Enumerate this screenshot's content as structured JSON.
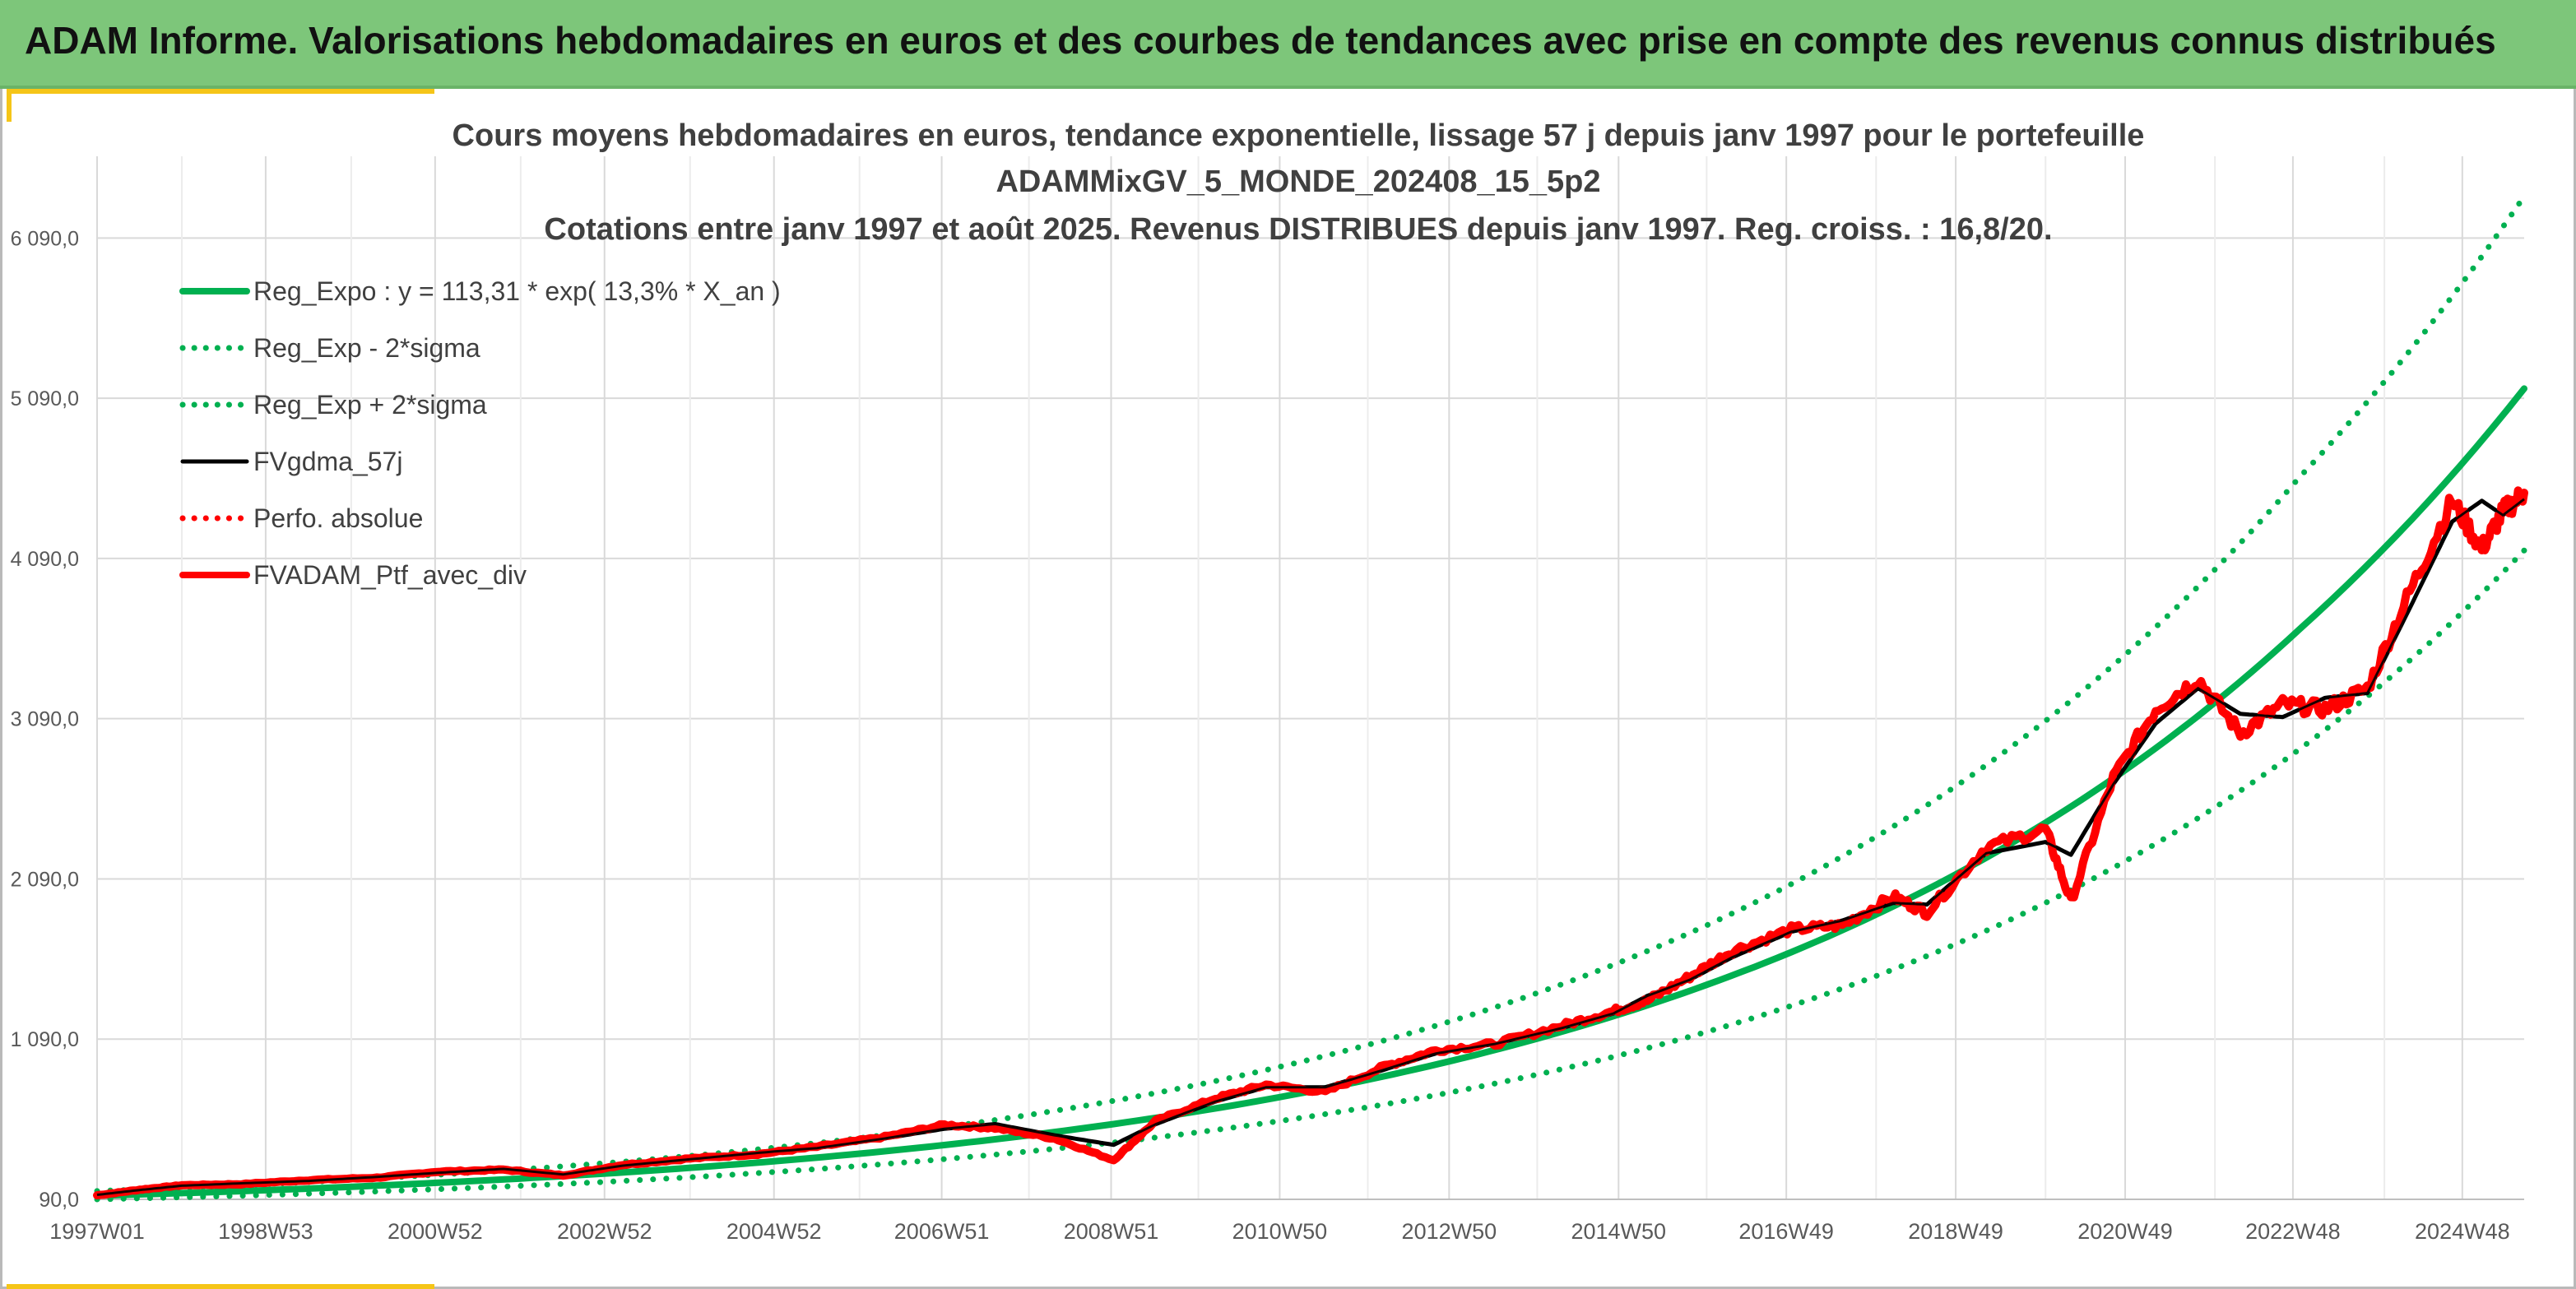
{
  "banner": {
    "title": "ADAM Informe. Valorisations hebdomadaires en euros et des courbes de tendances avec prise en compte des revenus connus distribués"
  },
  "colors": {
    "banner": "#7dc67a",
    "corner_accent": "#f5c518",
    "reg_green": "#00b050",
    "red": "#ff0000",
    "black": "#000000",
    "grid": "#d9d9d9",
    "axis_text": "#595959",
    "title_text": "#404040"
  },
  "chart_data": {
    "type": "line",
    "title_lines": [
      "Cours moyens hebdomadaires en euros, tendance exponentielle, lissage 57 j depuis janv 1997 pour le portefeuille",
      "ADAMMixGV_5_MONDE_202408_15_5p2",
      "Cotations entre janv 1997 et août 2025. Revenus DISTRIBUES depuis janv 1997. Reg. croiss. : 16,8/20."
    ],
    "xlabel": "",
    "ylabel": "",
    "x_range": [
      1997.0,
      2025.65
    ],
    "ylim": [
      90,
      6600
    ],
    "y_ticks": [
      90,
      1090,
      2090,
      3090,
      4090,
      5090,
      6090
    ],
    "y_tick_labels": [
      "90,0",
      "1 090,0",
      "2 090,0",
      "3 090,0",
      "4 090,0",
      "5 090,0",
      "6 090,0"
    ],
    "x_ticks": [
      {
        "x": 1997.0,
        "label": "1997W01"
      },
      {
        "x": 1998.99,
        "label": "1998W53"
      },
      {
        "x": 2000.99,
        "label": "2000W52"
      },
      {
        "x": 2002.99,
        "label": "2002W52"
      },
      {
        "x": 2004.99,
        "label": "2004W52"
      },
      {
        "x": 2006.97,
        "label": "2006W51"
      },
      {
        "x": 2008.97,
        "label": "2008W51"
      },
      {
        "x": 2010.96,
        "label": "2010W50"
      },
      {
        "x": 2012.96,
        "label": "2012W50"
      },
      {
        "x": 2014.96,
        "label": "2014W50"
      },
      {
        "x": 2016.94,
        "label": "2016W49"
      },
      {
        "x": 2018.94,
        "label": "2018W49"
      },
      {
        "x": 2020.94,
        "label": "2020W49"
      },
      {
        "x": 2022.92,
        "label": "2022W48"
      },
      {
        "x": 2024.92,
        "label": "2024W48"
      }
    ],
    "grid": true,
    "legend_position": "top-left",
    "series": [
      {
        "name": "Reg_Expo : y = 113,31 * exp( 13,3% *  X_an )",
        "style": "solid",
        "color": "#00b050",
        "x": [
          1997,
          1999,
          2001,
          2003,
          2005,
          2007,
          2009,
          2011,
          2013,
          2015,
          2017,
          2019,
          2021,
          2023,
          2025.65
        ],
        "y": [
          113,
          147,
          193,
          251,
          328,
          429,
          560,
          732,
          956,
          1250,
          1633,
          2135,
          2791,
          3649,
          5150
        ]
      },
      {
        "name": "Reg_Exp - 2*sigma",
        "style": "dotted",
        "color": "#00b050",
        "x": [
          1997,
          1999,
          2001,
          2003,
          2005,
          2007,
          2009,
          2011,
          2013,
          2015,
          2017,
          2019,
          2021,
          2023,
          2025.65
        ],
        "y": [
          90,
          117,
          153,
          199,
          261,
          341,
          445,
          582,
          760,
          993,
          1298,
          1697,
          2218,
          2900,
          4140
        ]
      },
      {
        "name": "Reg_Exp + 2*sigma",
        "style": "dotted",
        "color": "#00b050",
        "x": [
          1997,
          1999,
          2001,
          2003,
          2005,
          2007,
          2009,
          2011,
          2013,
          2015,
          2017,
          2019,
          2021,
          2023,
          2025.65
        ],
        "y": [
          142,
          185,
          243,
          316,
          413,
          540,
          705,
          922,
          1205,
          1575,
          2058,
          2690,
          3517,
          4598,
          6350
        ]
      },
      {
        "name": "FVgdma_57j",
        "style": "solid",
        "color": "#000000",
        "x": [
          1997,
          1997.5,
          1998,
          1998.7,
          1999.5,
          2000.3,
          2001,
          2001.8,
          2002.5,
          2003.2,
          2004,
          2004.8,
          2005.5,
          2006.3,
          2007,
          2007.6,
          2008.3,
          2009,
          2009.5,
          2010.2,
          2010.8,
          2011.5,
          2012.2,
          2012.8,
          2013.5,
          2014.3,
          2014.9,
          2015.3,
          2015.8,
          2016.3,
          2017,
          2017.6,
          2018.2,
          2018.6,
          2019.3,
          2020.0,
          2020.3,
          2020.8,
          2021.3,
          2021.8,
          2022.3,
          2022.8,
          2023.3,
          2023.8,
          2024.3,
          2024.8,
          2025.15,
          2025.4,
          2025.65
        ],
        "y": [
          118,
          148,
          175,
          190,
          205,
          230,
          255,
          280,
          245,
          300,
          340,
          380,
          410,
          470,
          530,
          560,
          490,
          430,
          560,
          700,
          790,
          790,
          900,
          1000,
          1060,
          1160,
          1250,
          1360,
          1460,
          1600,
          1760,
          1830,
          1940,
          1930,
          2250,
          2320,
          2240,
          2680,
          3060,
          3280,
          3120,
          3100,
          3220,
          3250,
          3780,
          4320,
          4450,
          4360,
          4460
        ]
      },
      {
        "name": "Perfo. absolue",
        "style": "dotted",
        "color": "#ff0000",
        "x": [
          1997,
          1997.5,
          1998,
          1998.7,
          1999.5,
          2000.3,
          2001,
          2001.8,
          2002.5,
          2003.2,
          2004,
          2004.8,
          2005.5,
          2006.3,
          2007,
          2007.6,
          2008.3,
          2009,
          2009.5,
          2010.2,
          2010.8,
          2011.5,
          2012.2,
          2012.8,
          2013.5,
          2014.3,
          2014.9,
          2015.3,
          2015.8,
          2016.3,
          2017,
          2017.6,
          2018.2,
          2018.6,
          2019.3,
          2020.0,
          2020.3,
          2020.8,
          2021.3,
          2021.8,
          2022.3,
          2022.8,
          2023.3,
          2023.8,
          2024.3,
          2024.8,
          2025.15,
          2025.4,
          2025.65
        ],
        "y": [
          115,
          150,
          178,
          185,
          210,
          225,
          262,
          275,
          240,
          305,
          345,
          372,
          418,
          480,
          555,
          535,
          470,
          335,
          580,
          720,
          805,
          760,
          920,
          1020,
          1060,
          1175,
          1265,
          1330,
          1480,
          1640,
          1775,
          1800,
          1980,
          1880,
          2290,
          2400,
          1950,
          2720,
          3150,
          3340,
          3000,
          3180,
          3150,
          3280,
          3880,
          4450,
          4150,
          4380,
          4500
        ]
      },
      {
        "name": "FVADAM_Ptf_avec_div",
        "style": "solid",
        "color": "#ff0000",
        "x": [
          1997,
          1997.5,
          1998,
          1998.7,
          1999.5,
          2000.3,
          2001,
          2001.8,
          2002.5,
          2003.2,
          2004,
          2004.8,
          2005.5,
          2006.3,
          2007,
          2007.6,
          2008.3,
          2009,
          2009.5,
          2010.2,
          2010.8,
          2011.5,
          2012.2,
          2012.8,
          2013.5,
          2014.3,
          2014.9,
          2015.3,
          2015.8,
          2016.3,
          2017,
          2017.6,
          2018.2,
          2018.6,
          2019.3,
          2020.0,
          2020.3,
          2020.8,
          2021.3,
          2021.8,
          2022.3,
          2022.8,
          2023.3,
          2023.8,
          2024.3,
          2024.8,
          2025.15,
          2025.4,
          2025.65
        ],
        "y": [
          115,
          150,
          178,
          185,
          210,
          225,
          262,
          275,
          240,
          305,
          345,
          372,
          418,
          480,
          555,
          535,
          470,
          335,
          580,
          720,
          805,
          760,
          920,
          1020,
          1060,
          1175,
          1265,
          1330,
          1480,
          1640,
          1775,
          1800,
          1980,
          1880,
          2290,
          2400,
          1950,
          2720,
          3150,
          3340,
          3000,
          3180,
          3150,
          3280,
          3880,
          4450,
          4150,
          4380,
          4500
        ]
      }
    ]
  }
}
